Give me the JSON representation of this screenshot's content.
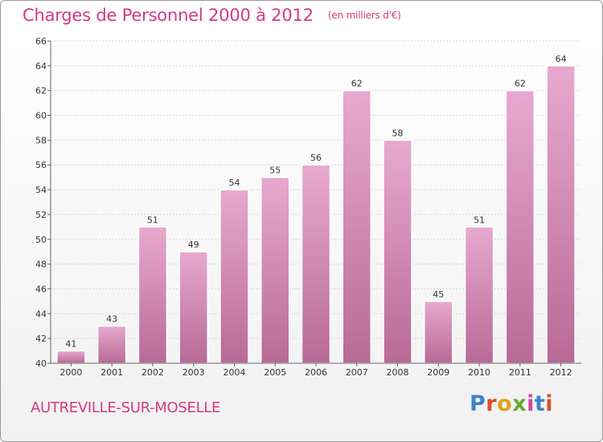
{
  "title": "Charges de Personnel 2000 à 2012",
  "subtitle": "(en milliers d'€)",
  "location": "AUTREVILLE-SUR-MOSELLE",
  "brand": {
    "text": "Proxiti",
    "letter_colors": [
      "#3a86c8",
      "#d94f2b",
      "#e2a118",
      "#6aa832",
      "#c94a9a",
      "#3a86c8",
      "#d94f2b"
    ]
  },
  "colors": {
    "title": "#d23b82",
    "bar_light": "#e7a9cf",
    "bar_dark": "#b86a97",
    "grid": "#d8d8d8",
    "axis": "#666666"
  },
  "chart_data": {
    "type": "bar",
    "categories": [
      "2000",
      "2001",
      "2002",
      "2003",
      "2004",
      "2005",
      "2006",
      "2007",
      "2008",
      "2009",
      "2010",
      "2011",
      "2012"
    ],
    "values": [
      41,
      43,
      51,
      49,
      54,
      55,
      56,
      62,
      58,
      45,
      51,
      62,
      64
    ],
    "ylim": [
      40,
      66
    ],
    "yticks": [
      40,
      42,
      44,
      46,
      48,
      50,
      52,
      54,
      56,
      58,
      60,
      62,
      64,
      66
    ],
    "grid": true,
    "data_labels": true
  }
}
